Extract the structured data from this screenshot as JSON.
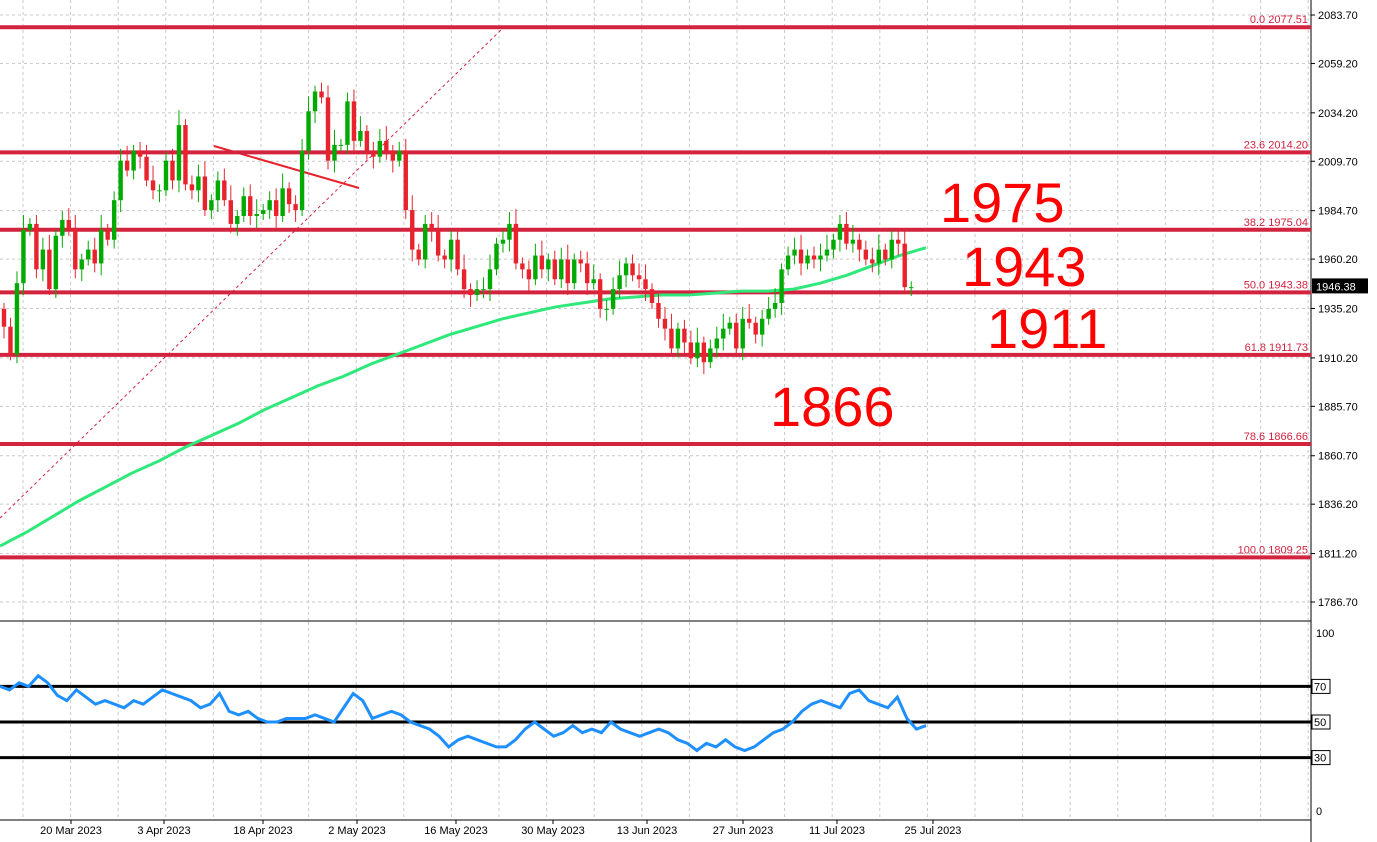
{
  "chart_data": [
    {
      "type": "candlestick",
      "price_axis": {
        "ylim": [
          1775,
          2090
        ],
        "ticks": [
          "2083.70",
          "2059.20",
          "2034.20",
          "2009.70",
          "1984.70",
          "1960.20",
          "1935.20",
          "1910.20",
          "1885.70",
          "1860.70",
          "1836.20",
          "1811.20",
          "1786.70"
        ],
        "tick_values": [
          2083.7,
          2059.2,
          2034.2,
          2009.7,
          1984.7,
          1960.2,
          1935.2,
          1910.2,
          1885.7,
          1860.7,
          1836.2,
          1811.2,
          1786.7
        ]
      },
      "last_price": {
        "label": "1946.38",
        "value": 1946.38
      },
      "fib_levels": [
        {
          "label": "0.0 2077.51",
          "value": 2077.51
        },
        {
          "label": "23.6 2014.20",
          "value": 2014.2
        },
        {
          "label": "38.2 1975.04",
          "value": 1975.04
        },
        {
          "label": "50.0 1943.38",
          "value": 1943.38
        },
        {
          "label": "61.8 1911.73",
          "value": 1911.73
        },
        {
          "label": "78.6 1866.66",
          "value": 1866.66
        },
        {
          "label": "100.0 1809.25",
          "value": 1809.25
        }
      ],
      "annotations": [
        {
          "text": "1975",
          "value": 1975
        },
        {
          "text": "1943",
          "value": 1943
        },
        {
          "text": "1911",
          "value": 1911
        },
        {
          "text": "1866",
          "value": 1866
        }
      ],
      "close": [
        1926,
        1912,
        1948,
        1975,
        1978,
        1955,
        1965,
        1945,
        1972,
        1980,
        1975,
        1955,
        1960,
        1965,
        1958,
        1975,
        1970,
        1990,
        2010,
        2005,
        2015,
        2012,
        2000,
        1995,
        1995,
        2010,
        2000,
        2028,
        1998,
        1995,
        2002,
        1985,
        1990,
        2000,
        1990,
        1978,
        1982,
        1992,
        1982,
        1983,
        1985,
        1990,
        1982,
        1996,
        1988,
        1985,
        2015,
        2035,
        2045,
        2042,
        2010,
        2018,
        2018,
        2040,
        2020,
        2025,
        2015,
        2012,
        2020,
        2015,
        2010,
        2015,
        1985,
        1965,
        1960,
        1978,
        1975,
        1962,
        1960,
        1970,
        1955,
        1945,
        1942,
        1945,
        1945,
        1955,
        1968,
        1970,
        1978,
        1958,
        1955,
        1950,
        1962,
        1955,
        1960,
        1950,
        1960,
        1948,
        1960,
        1958,
        1948,
        1950,
        1935,
        1935,
        1945,
        1952,
        1958,
        1952,
        1950,
        1945,
        1938,
        1930,
        1925,
        1915,
        1925,
        1918,
        1910,
        1918,
        1908,
        1915,
        1920,
        1925,
        1928,
        1915,
        1930,
        1928,
        1922,
        1930,
        1935,
        1938,
        1955,
        1962,
        1965,
        1958,
        1962,
        1960,
        1962,
        1965,
        1970,
        1978,
        1968,
        1970,
        1965,
        1960,
        1958,
        1965,
        1960,
        1970,
        1968,
        1946,
        1946
      ],
      "categories": [
        "20 Mar 2023",
        "3 Apr 2023",
        "18 Apr 2023",
        "2 May 2023",
        "16 May 2023",
        "30 May 2023",
        "13 Jun 2023",
        "27 Jun 2023",
        "11 Jul 2023",
        "25 Jul 2023"
      ],
      "moving_average": [
        1815,
        1822,
        1830,
        1838,
        1845,
        1852,
        1858,
        1865,
        1871,
        1877,
        1884,
        1890,
        1896,
        1901,
        1907,
        1912,
        1917,
        1922,
        1926,
        1930,
        1933,
        1936,
        1938,
        1940,
        1941,
        1942,
        1942,
        1943,
        1944,
        1944,
        1945,
        1948,
        1952,
        1957,
        1962,
        1966
      ]
    },
    {
      "type": "line",
      "ylim": [
        0,
        100
      ],
      "ticks": [
        "100",
        "70",
        "50",
        "30",
        "0"
      ],
      "tick_values": [
        100,
        70,
        50,
        30,
        0
      ],
      "values": [
        70,
        68,
        72,
        70,
        76,
        72,
        65,
        62,
        68,
        64,
        60,
        62,
        60,
        58,
        62,
        60,
        64,
        68,
        66,
        64,
        62,
        58,
        60,
        66,
        56,
        54,
        56,
        52,
        50,
        50,
        52,
        52,
        52,
        54,
        52,
        50,
        58,
        66,
        62,
        52,
        54,
        56,
        54,
        50,
        48,
        46,
        42,
        36,
        40,
        42,
        40,
        38,
        36,
        36,
        40,
        46,
        50,
        46,
        42,
        44,
        48,
        44,
        46,
        44,
        50,
        46,
        44,
        42,
        44,
        46,
        44,
        40,
        38,
        34,
        38,
        36,
        40,
        36,
        34,
        36,
        40,
        44,
        46,
        50,
        56,
        60,
        62,
        60,
        58,
        66,
        68,
        62,
        60,
        58,
        64,
        52,
        46,
        48
      ],
      "levels": [
        {
          "label": "70",
          "value": 70
        },
        {
          "label": "50",
          "value": 50
        },
        {
          "label": "30",
          "value": 30
        }
      ]
    }
  ]
}
